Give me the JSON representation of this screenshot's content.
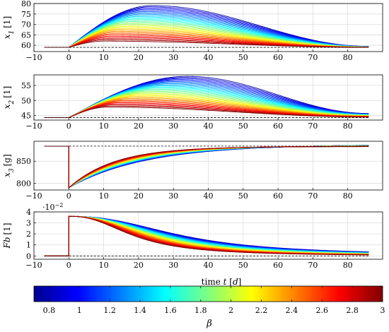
{
  "chart_data": [
    {
      "type": "line",
      "ylabel_sym": "x",
      "ylabel_sub": "1",
      "ylabel_unit": "[1]",
      "xlim": [
        -10,
        90
      ],
      "ylim": [
        57,
        80
      ],
      "xticks": [
        -10,
        0,
        10,
        20,
        30,
        40,
        50,
        60,
        70,
        80
      ],
      "xtick_labels": [
        "−10",
        "0",
        "10",
        "20",
        "30",
        "40",
        "50",
        "60",
        "70",
        "80"
      ],
      "yticks": [
        60,
        65,
        70,
        75,
        80
      ],
      "ytick_labels": [
        "60",
        "65",
        "70",
        "75",
        "80"
      ],
      "grid": true,
      "reference_line": 59,
      "curve_family": {
        "baseline": 59,
        "x_start": -7,
        "x_step": 0,
        "x_end": 86,
        "beta_min": 0.8,
        "beta_max": 3,
        "count": 30,
        "peak_at_beta_min": 79,
        "peak_at_beta_max": 62,
        "peak_time_at_beta_min": 24,
        "peak_time_at_beta_max": 10,
        "final_at_beta_min": 59.5,
        "final_at_beta_max": 59
      }
    },
    {
      "type": "line",
      "ylabel_sym": "x",
      "ylabel_sub": "2",
      "ylabel_unit": "[1]",
      "xlim": [
        -10,
        90
      ],
      "ylim": [
        43.5,
        58.5
      ],
      "xticks": [
        -10,
        0,
        10,
        20,
        30,
        40,
        50,
        60,
        70,
        80
      ],
      "xtick_labels": [
        "−10",
        "0",
        "10",
        "20",
        "30",
        "40",
        "50",
        "60",
        "70",
        "80"
      ],
      "yticks": [
        45,
        50,
        55
      ],
      "ytick_labels": [
        "45",
        "50",
        "55"
      ],
      "grid": true,
      "reference_line": 44.3,
      "curve_family": {
        "baseline": 44.3,
        "x_start": -7,
        "x_step": 0,
        "x_end": 86,
        "beta_min": 0.8,
        "beta_max": 3,
        "count": 30,
        "peak_at_beta_min": 58,
        "peak_at_beta_max": 47.8,
        "peak_time_at_beta_min": 34,
        "peak_time_at_beta_max": 11,
        "final_at_beta_min": 45.7,
        "final_at_beta_max": 44.5
      }
    },
    {
      "type": "line",
      "ylabel_sym": "x",
      "ylabel_sub": "3",
      "ylabel_unit": "[g]",
      "xlim": [
        -10,
        90
      ],
      "ylim": [
        785,
        895
      ],
      "xticks": [
        -10,
        0,
        10,
        20,
        30,
        40,
        50,
        60,
        70,
        80
      ],
      "xtick_labels": [
        "−10",
        "0",
        "10",
        "20",
        "30",
        "40",
        "50",
        "60",
        "70",
        "80"
      ],
      "yticks": [
        800,
        850
      ],
      "ytick_labels": [
        "800",
        "850"
      ],
      "grid": true,
      "reference_line": 884,
      "curve_family": {
        "pre_step_value": 884,
        "x_start": -7,
        "x_step": 0,
        "x_end": 86,
        "step_min": 790,
        "beta_min": 0.8,
        "beta_max": 3,
        "count": 30,
        "final_at_beta_min": 888,
        "final_at_beta_max": 883,
        "crossover_at_beta_min": 22,
        "crossover_at_beta_max": 13
      }
    },
    {
      "type": "line",
      "ylabel_sym": "Fb",
      "ylabel_sub": "",
      "ylabel_unit": "[1]",
      "xlim": [
        -10,
        90
      ],
      "ylim": [
        -0.3,
        4
      ],
      "xticks": [
        -10,
        0,
        10,
        20,
        30,
        40,
        50,
        60,
        70,
        80
      ],
      "xtick_labels": [
        "−10",
        "0",
        "10",
        "20",
        "30",
        "40",
        "50",
        "60",
        "70",
        "80"
      ],
      "yticks": [
        0,
        1,
        2,
        3,
        4
      ],
      "ytick_labels": [
        "0",
        "1",
        "2",
        "3",
        "4"
      ],
      "multiplier_base": "·10",
      "multiplier_exp": "−2",
      "grid": true,
      "reference_line": 0,
      "curve_family": {
        "pre_step_value": 0,
        "x_start": -7,
        "x_step": 0,
        "x_end": 86,
        "step_max": 3.6,
        "beta_min": 0.8,
        "beta_max": 3,
        "count": 30,
        "half_life_at_beta_min": 33,
        "half_life_at_beta_max": 19,
        "final_at_beta_min": 0.05,
        "final_at_beta_max": 0
      }
    }
  ],
  "xlabel_text": "time ",
  "xlabel_var": "t",
  "xlabel_unit": "d",
  "colorbar": {
    "colormap": "jet",
    "range": [
      0.7,
      3
    ],
    "ticks": [
      0.8,
      1,
      1.2,
      1.4,
      1.6,
      1.8,
      2,
      2.2,
      2.4,
      2.6,
      2.8,
      3
    ],
    "tick_labels": [
      "0.8",
      "1",
      "1.2",
      "1.4",
      "1.6",
      "1.8",
      "2",
      "2.2",
      "2.4",
      "2.6",
      "2.8",
      "3"
    ],
    "label": "β"
  },
  "colors": {
    "grid": "#d9d9d9",
    "axis": "#000000",
    "reference": "#000000"
  }
}
